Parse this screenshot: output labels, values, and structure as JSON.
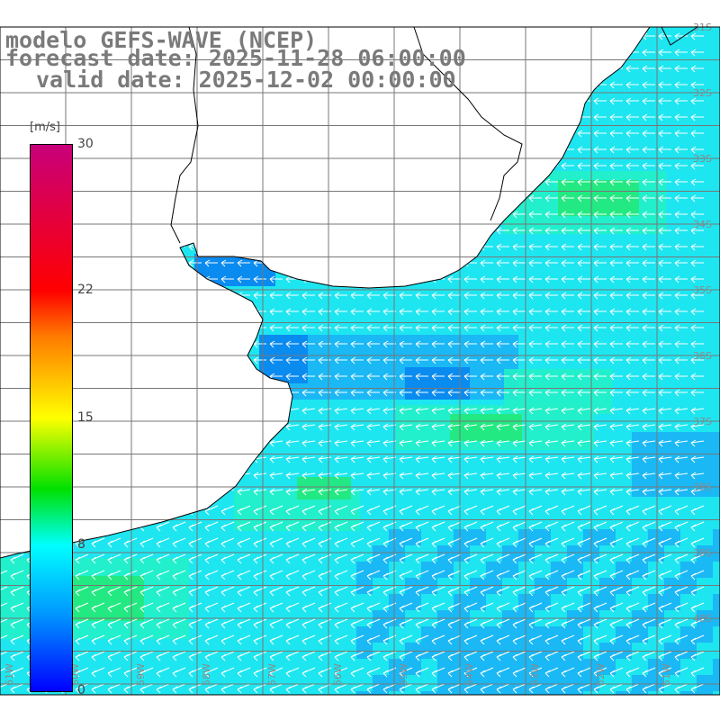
{
  "title": {
    "line1": "modelo GEFS-WAVE (NCEP)",
    "line2": "forecast date: 2025-11-28 06:00:00",
    "line3": "valid date: 2025-12-02 00:00:00"
  },
  "legend": {
    "unit": "[m/s]",
    "ticks": [
      {
        "label": "30",
        "value": 30
      },
      {
        "label": "22",
        "value": 22
      },
      {
        "label": "15",
        "value": 15
      },
      {
        "label": "8",
        "value": 8
      },
      {
        "label": "0",
        "value": 0
      }
    ],
    "colors": [
      "#0000ff",
      "#0096ff",
      "#00ffff",
      "#00e000",
      "#ffff00",
      "#ff7a00",
      "#ff0000",
      "#c8007a"
    ]
  },
  "map": {
    "lat_labels": [
      "31S",
      "32S",
      "33S",
      "34S",
      "35S",
      "36S",
      "37S",
      "38S",
      "39S",
      "40S"
    ],
    "lon_labels": [
      "61W",
      "60W",
      "59W",
      "58W",
      "57W",
      "56W",
      "55W",
      "54W",
      "53W",
      "52W",
      "51W"
    ],
    "land_color": "#ffffff",
    "grid_color": "#777777",
    "wind_direction": "from east",
    "colors": {
      "blue": "#0a8bf0",
      "lightblue": "#1ab8f5",
      "cyan": "#1ee6f0",
      "aqua": "#22f0c8",
      "green": "#22e87a"
    }
  }
}
